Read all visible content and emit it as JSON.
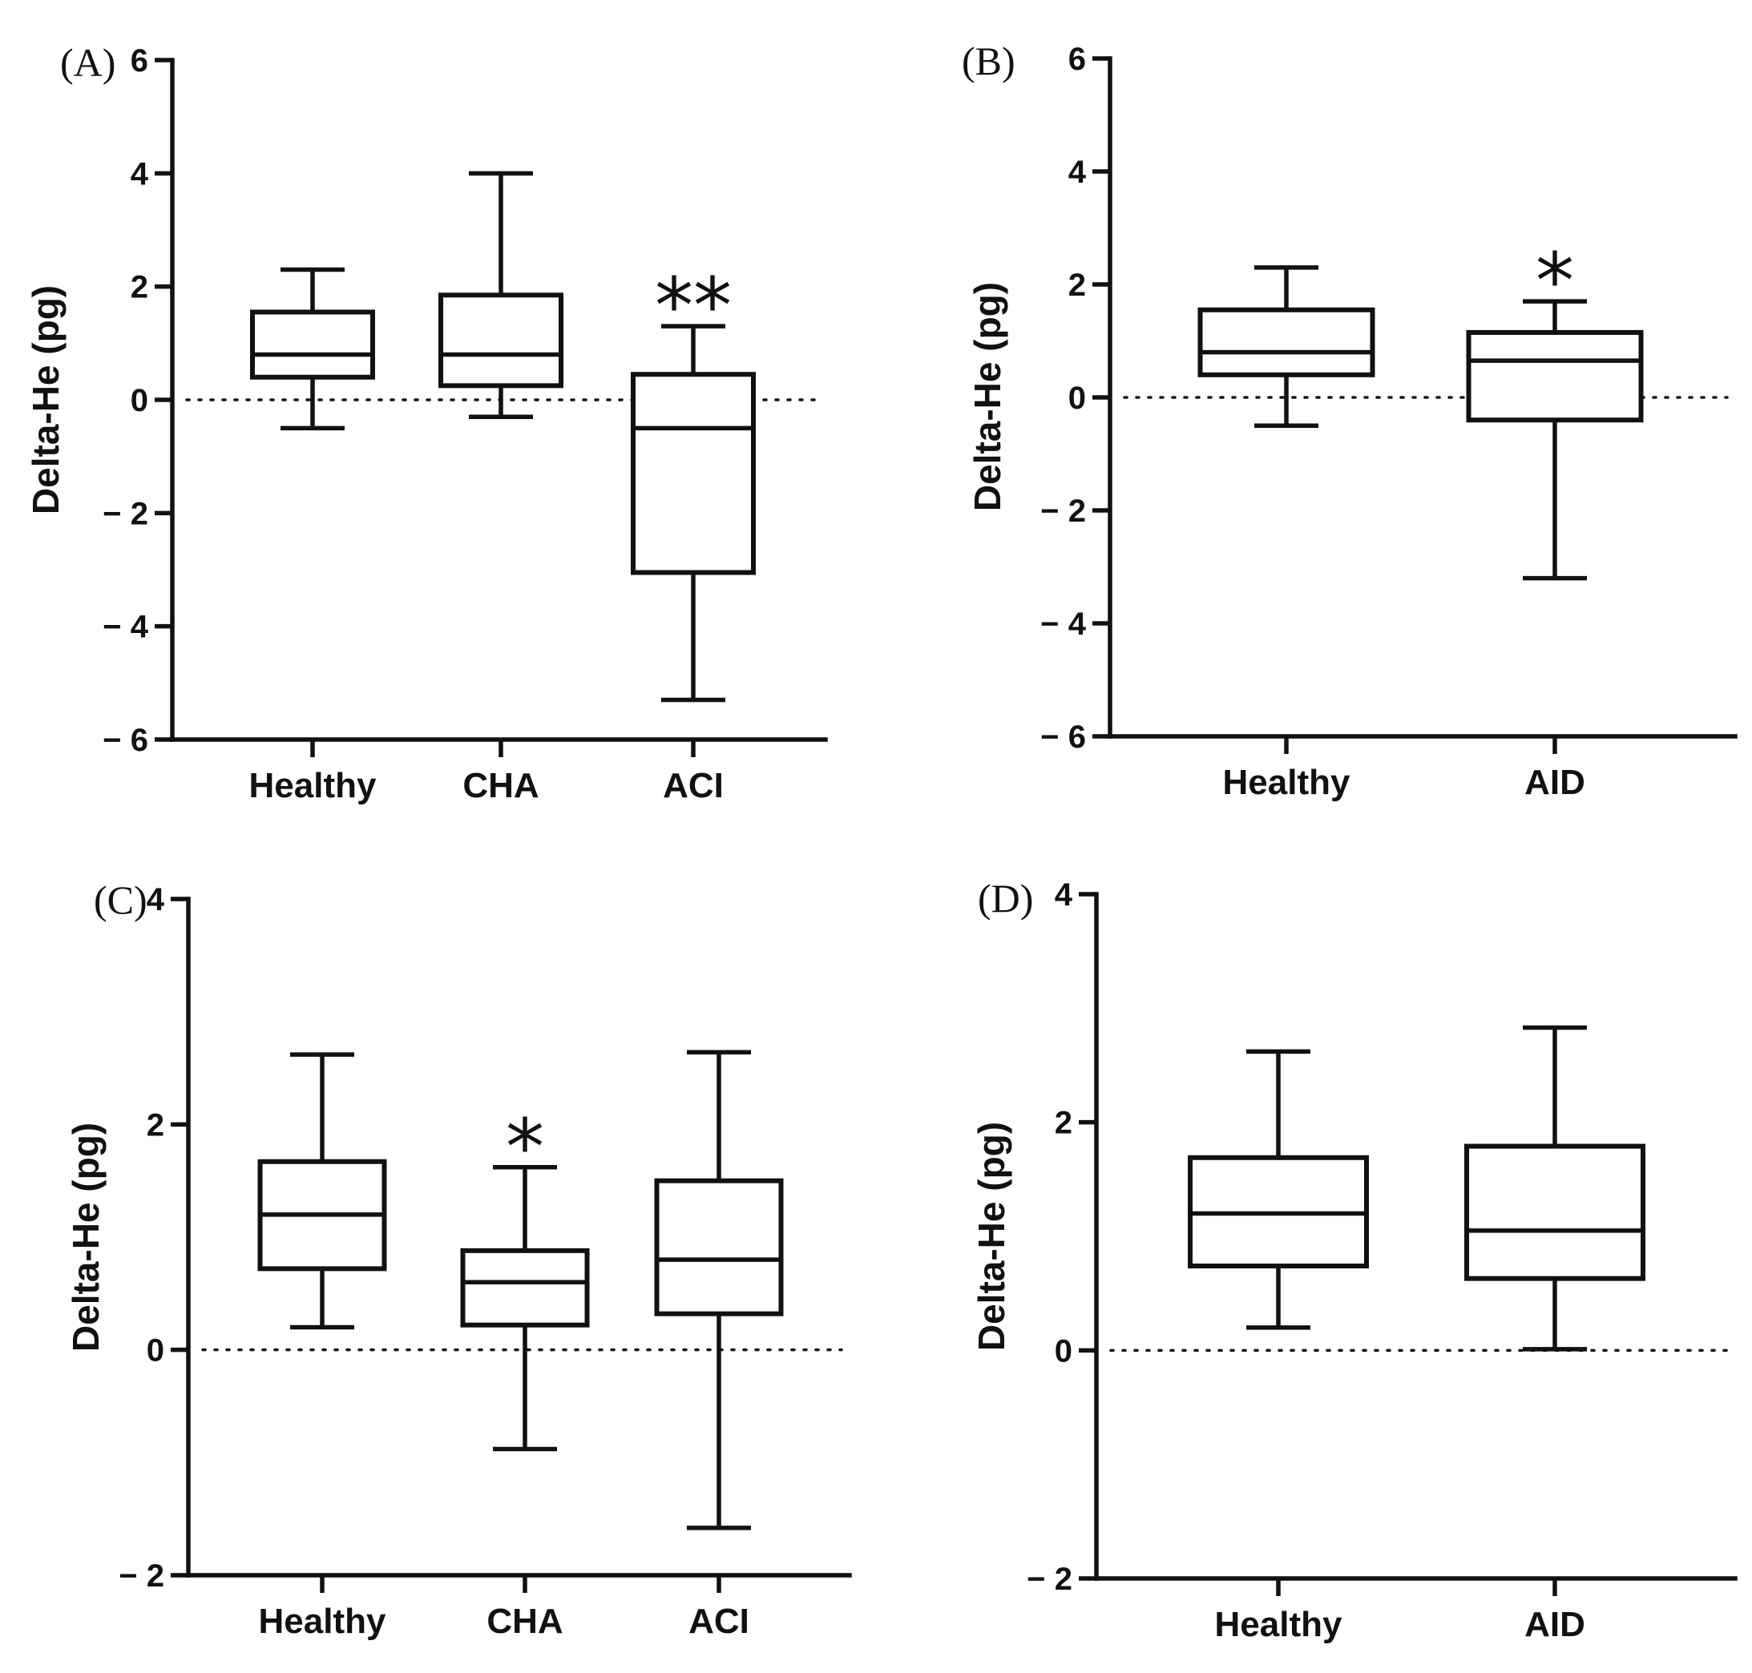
{
  "figure": {
    "colors": {
      "stroke": "#111111",
      "background": "#ffffff"
    }
  },
  "chart_data": [
    {
      "panel": "(A)",
      "type": "box",
      "title": "",
      "xlabel": "",
      "ylabel": "Delta-He (pg)",
      "ylim": [
        -6,
        6
      ],
      "yticks": [
        6,
        4,
        2,
        0,
        -2,
        -4,
        -6
      ],
      "ytick_labels": [
        "6",
        "4",
        "2",
        "0",
        "− 2",
        "− 4",
        "− 6"
      ],
      "reference_line": 0,
      "categories": [
        "Healthy",
        "CHA",
        "ACI"
      ],
      "boxes": [
        {
          "min": -0.5,
          "q1": 0.4,
          "median": 0.8,
          "q3": 1.55,
          "max": 2.3,
          "sig": ""
        },
        {
          "min": -0.3,
          "q1": 0.25,
          "median": 0.8,
          "q3": 1.85,
          "max": 4.0,
          "sig": ""
        },
        {
          "min": -5.3,
          "q1": -3.05,
          "median": -0.5,
          "q3": 0.45,
          "max": 1.3,
          "sig": "**"
        }
      ]
    },
    {
      "panel": "(B)",
      "type": "box",
      "title": "",
      "xlabel": "",
      "ylabel": "Delta-He (pg)",
      "ylim": [
        -6,
        6
      ],
      "yticks": [
        6,
        4,
        2,
        0,
        -2,
        -4,
        -6
      ],
      "ytick_labels": [
        "6",
        "4",
        "2",
        "0",
        "− 2",
        "− 4",
        "− 6"
      ],
      "reference_line": 0,
      "categories": [
        "Healthy",
        "AID"
      ],
      "boxes": [
        {
          "min": -0.5,
          "q1": 0.4,
          "median": 0.8,
          "q3": 1.55,
          "max": 2.3,
          "sig": ""
        },
        {
          "min": -3.2,
          "q1": -0.4,
          "median": 0.65,
          "q3": 1.15,
          "max": 1.7,
          "sig": "*"
        }
      ]
    },
    {
      "panel": "(C)",
      "type": "box",
      "title": "",
      "xlabel": "",
      "ylabel": "Delta-He  (pg)",
      "ylim": [
        -2,
        4
      ],
      "yticks": [
        4,
        2,
        0,
        -2
      ],
      "ytick_labels": [
        "4",
        "2",
        "0",
        "− 2"
      ],
      "reference_line": 0,
      "categories": [
        "Healthy",
        "CHA",
        "ACI"
      ],
      "boxes": [
        {
          "min": 0.2,
          "q1": 0.72,
          "median": 1.2,
          "q3": 1.67,
          "max": 2.62,
          "sig": ""
        },
        {
          "min": -0.88,
          "q1": 0.22,
          "median": 0.6,
          "q3": 0.88,
          "max": 1.62,
          "sig": "*"
        },
        {
          "min": -1.58,
          "q1": 0.32,
          "median": 0.8,
          "q3": 1.5,
          "max": 2.64,
          "sig": ""
        }
      ]
    },
    {
      "panel": "(D)",
      "type": "box",
      "title": "",
      "xlabel": "",
      "ylabel": "Delta-He  (pg)",
      "ylim": [
        -2,
        4
      ],
      "yticks": [
        4,
        2,
        0,
        -2
      ],
      "ytick_labels": [
        "4",
        "2",
        "0",
        "− 2"
      ],
      "reference_line": 0,
      "categories": [
        "Healthy",
        "AID"
      ],
      "boxes": [
        {
          "min": 0.2,
          "q1": 0.74,
          "median": 1.2,
          "q3": 1.69,
          "max": 2.62,
          "sig": ""
        },
        {
          "min": 0.01,
          "q1": 0.63,
          "median": 1.05,
          "q3": 1.79,
          "max": 2.83,
          "sig": ""
        }
      ]
    }
  ]
}
